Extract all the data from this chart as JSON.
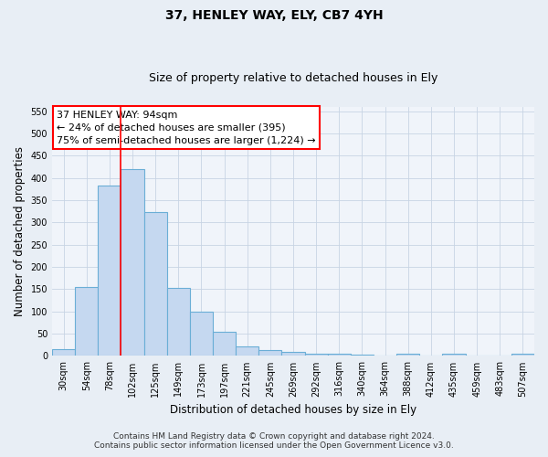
{
  "title": "37, HENLEY WAY, ELY, CB7 4YH",
  "subtitle": "Size of property relative to detached houses in Ely",
  "xlabel": "Distribution of detached houses by size in Ely",
  "ylabel": "Number of detached properties",
  "categories": [
    "30sqm",
    "54sqm",
    "78sqm",
    "102sqm",
    "125sqm",
    "149sqm",
    "173sqm",
    "197sqm",
    "221sqm",
    "245sqm",
    "269sqm",
    "292sqm",
    "316sqm",
    "340sqm",
    "364sqm",
    "388sqm",
    "412sqm",
    "435sqm",
    "459sqm",
    "483sqm",
    "507sqm"
  ],
  "values": [
    15,
    155,
    383,
    420,
    323,
    153,
    100,
    55,
    22,
    13,
    9,
    5,
    4,
    2,
    1,
    5,
    1,
    5,
    1,
    1,
    4
  ],
  "bar_color": "#c5d8f0",
  "bar_edge_color": "#6aaed6",
  "red_line_x": 2.5,
  "annotation_line1": "37 HENLEY WAY: 94sqm",
  "annotation_line2": "← 24% of detached houses are smaller (395)",
  "annotation_line3": "75% of semi-detached houses are larger (1,224) →",
  "ylim": [
    0,
    560
  ],
  "yticks": [
    0,
    50,
    100,
    150,
    200,
    250,
    300,
    350,
    400,
    450,
    500,
    550
  ],
  "footer1": "Contains HM Land Registry data © Crown copyright and database right 2024.",
  "footer2": "Contains public sector information licensed under the Open Government Licence v3.0.",
  "bg_color": "#e8eef5",
  "plot_bg_color": "#f0f4fa",
  "grid_color": "#c8d4e4",
  "title_fontsize": 10,
  "subtitle_fontsize": 9,
  "axis_label_fontsize": 8.5,
  "tick_fontsize": 7,
  "footer_fontsize": 6.5,
  "ann_fontsize": 8
}
